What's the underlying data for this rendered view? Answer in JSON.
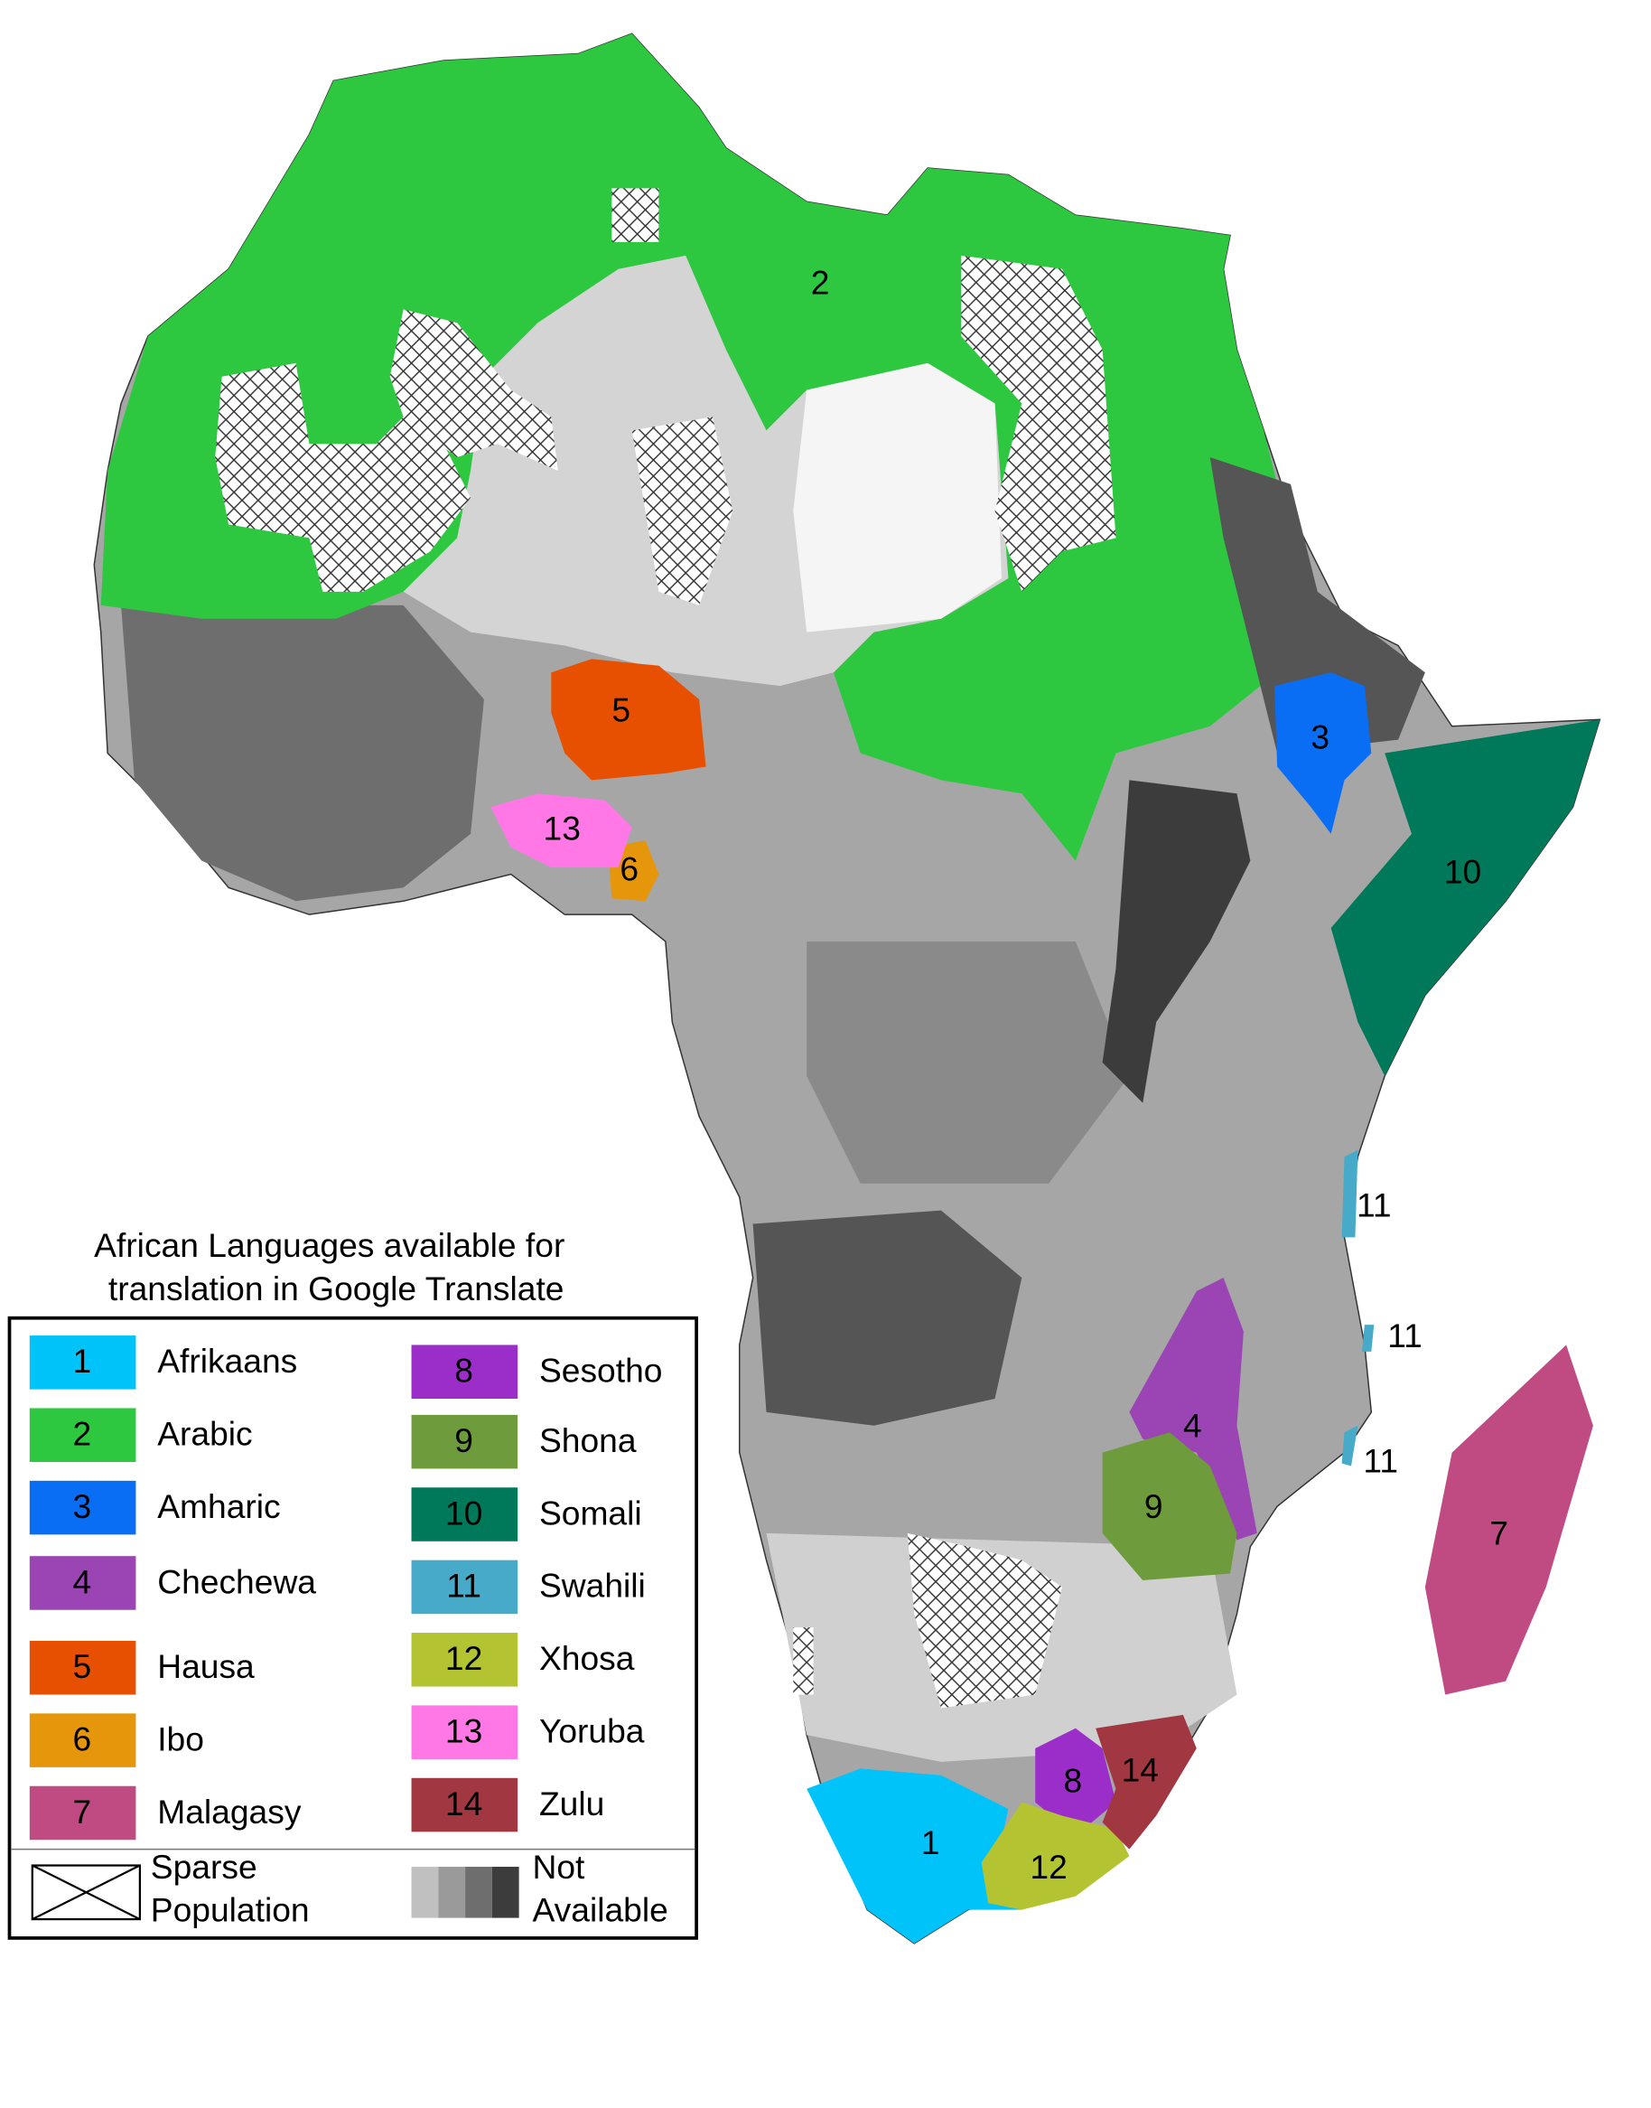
{
  "title_lines": [
    "African Languages available for",
    "translation in Google Translate"
  ],
  "legend": {
    "items": [
      {
        "number": "1",
        "name": "Afrikaans",
        "color": "#00c3fa"
      },
      {
        "number": "2",
        "name": "Arabic",
        "color": "#2dc840"
      },
      {
        "number": "3",
        "name": "Amharic",
        "color": "#0a6ef5"
      },
      {
        "number": "4",
        "name": "Chechewa",
        "color": "#9b45b4"
      },
      {
        "number": "5",
        "name": "Hausa",
        "color": "#e65000"
      },
      {
        "number": "6",
        "name": "Ibo",
        "color": "#e6960a"
      },
      {
        "number": "7",
        "name": "Malagasy",
        "color": "#c04b82"
      },
      {
        "number": "8",
        "name": "Sesotho",
        "color": "#9b2dc8"
      },
      {
        "number": "9",
        "name": "Shona",
        "color": "#6e9b3c"
      },
      {
        "number": "10",
        "name": "Somali",
        "color": "#00785a"
      },
      {
        "number": "11",
        "name": "Swahili",
        "color": "#46aac8"
      },
      {
        "number": "12",
        "name": "Xhosa",
        "color": "#b4c332"
      },
      {
        "number": "13",
        "name": "Yoruba",
        "color": "#ff78e6"
      },
      {
        "number": "14",
        "name": "Zulu",
        "color": "#a03741"
      }
    ],
    "sparse": [
      "Sparse",
      "Population"
    ],
    "not_available": [
      "Not",
      "Available"
    ]
  },
  "map_labels": [
    "2",
    "3",
    "5",
    "13",
    "6",
    "10",
    "11",
    "11",
    "11",
    "4",
    "9",
    "7",
    "1",
    "12",
    "8",
    "14"
  ]
}
